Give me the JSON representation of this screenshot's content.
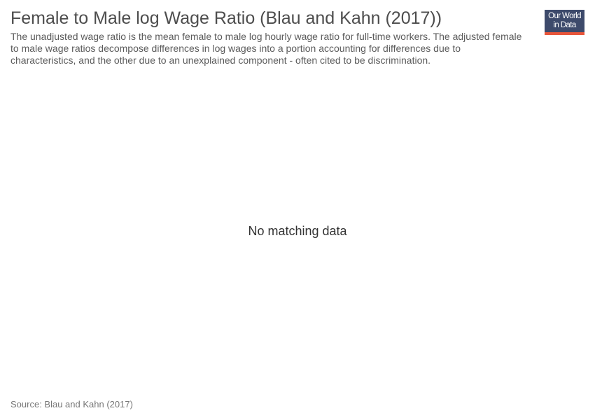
{
  "chart_data": {
    "type": "line",
    "title": "Female to Male log Wage Ratio (Blau and Kahn (2017))",
    "subtitle": "The unadjusted wage ratio is the mean female to male log hourly wage ratio for full-time workers. The adjusted female to male wage ratios decompose differences in log wages into a portion accounting for differences due to characteristics, and the other due to an unexplained component - often cited to be discrimination.",
    "series": [],
    "message": "No matching data"
  },
  "logo": {
    "line1": "Our World",
    "line2": "in Data",
    "bg_color": "#3d4a6b",
    "accent_color": "#e8553a"
  },
  "footer": {
    "source": "Source: Blau and Kahn (2017)"
  }
}
